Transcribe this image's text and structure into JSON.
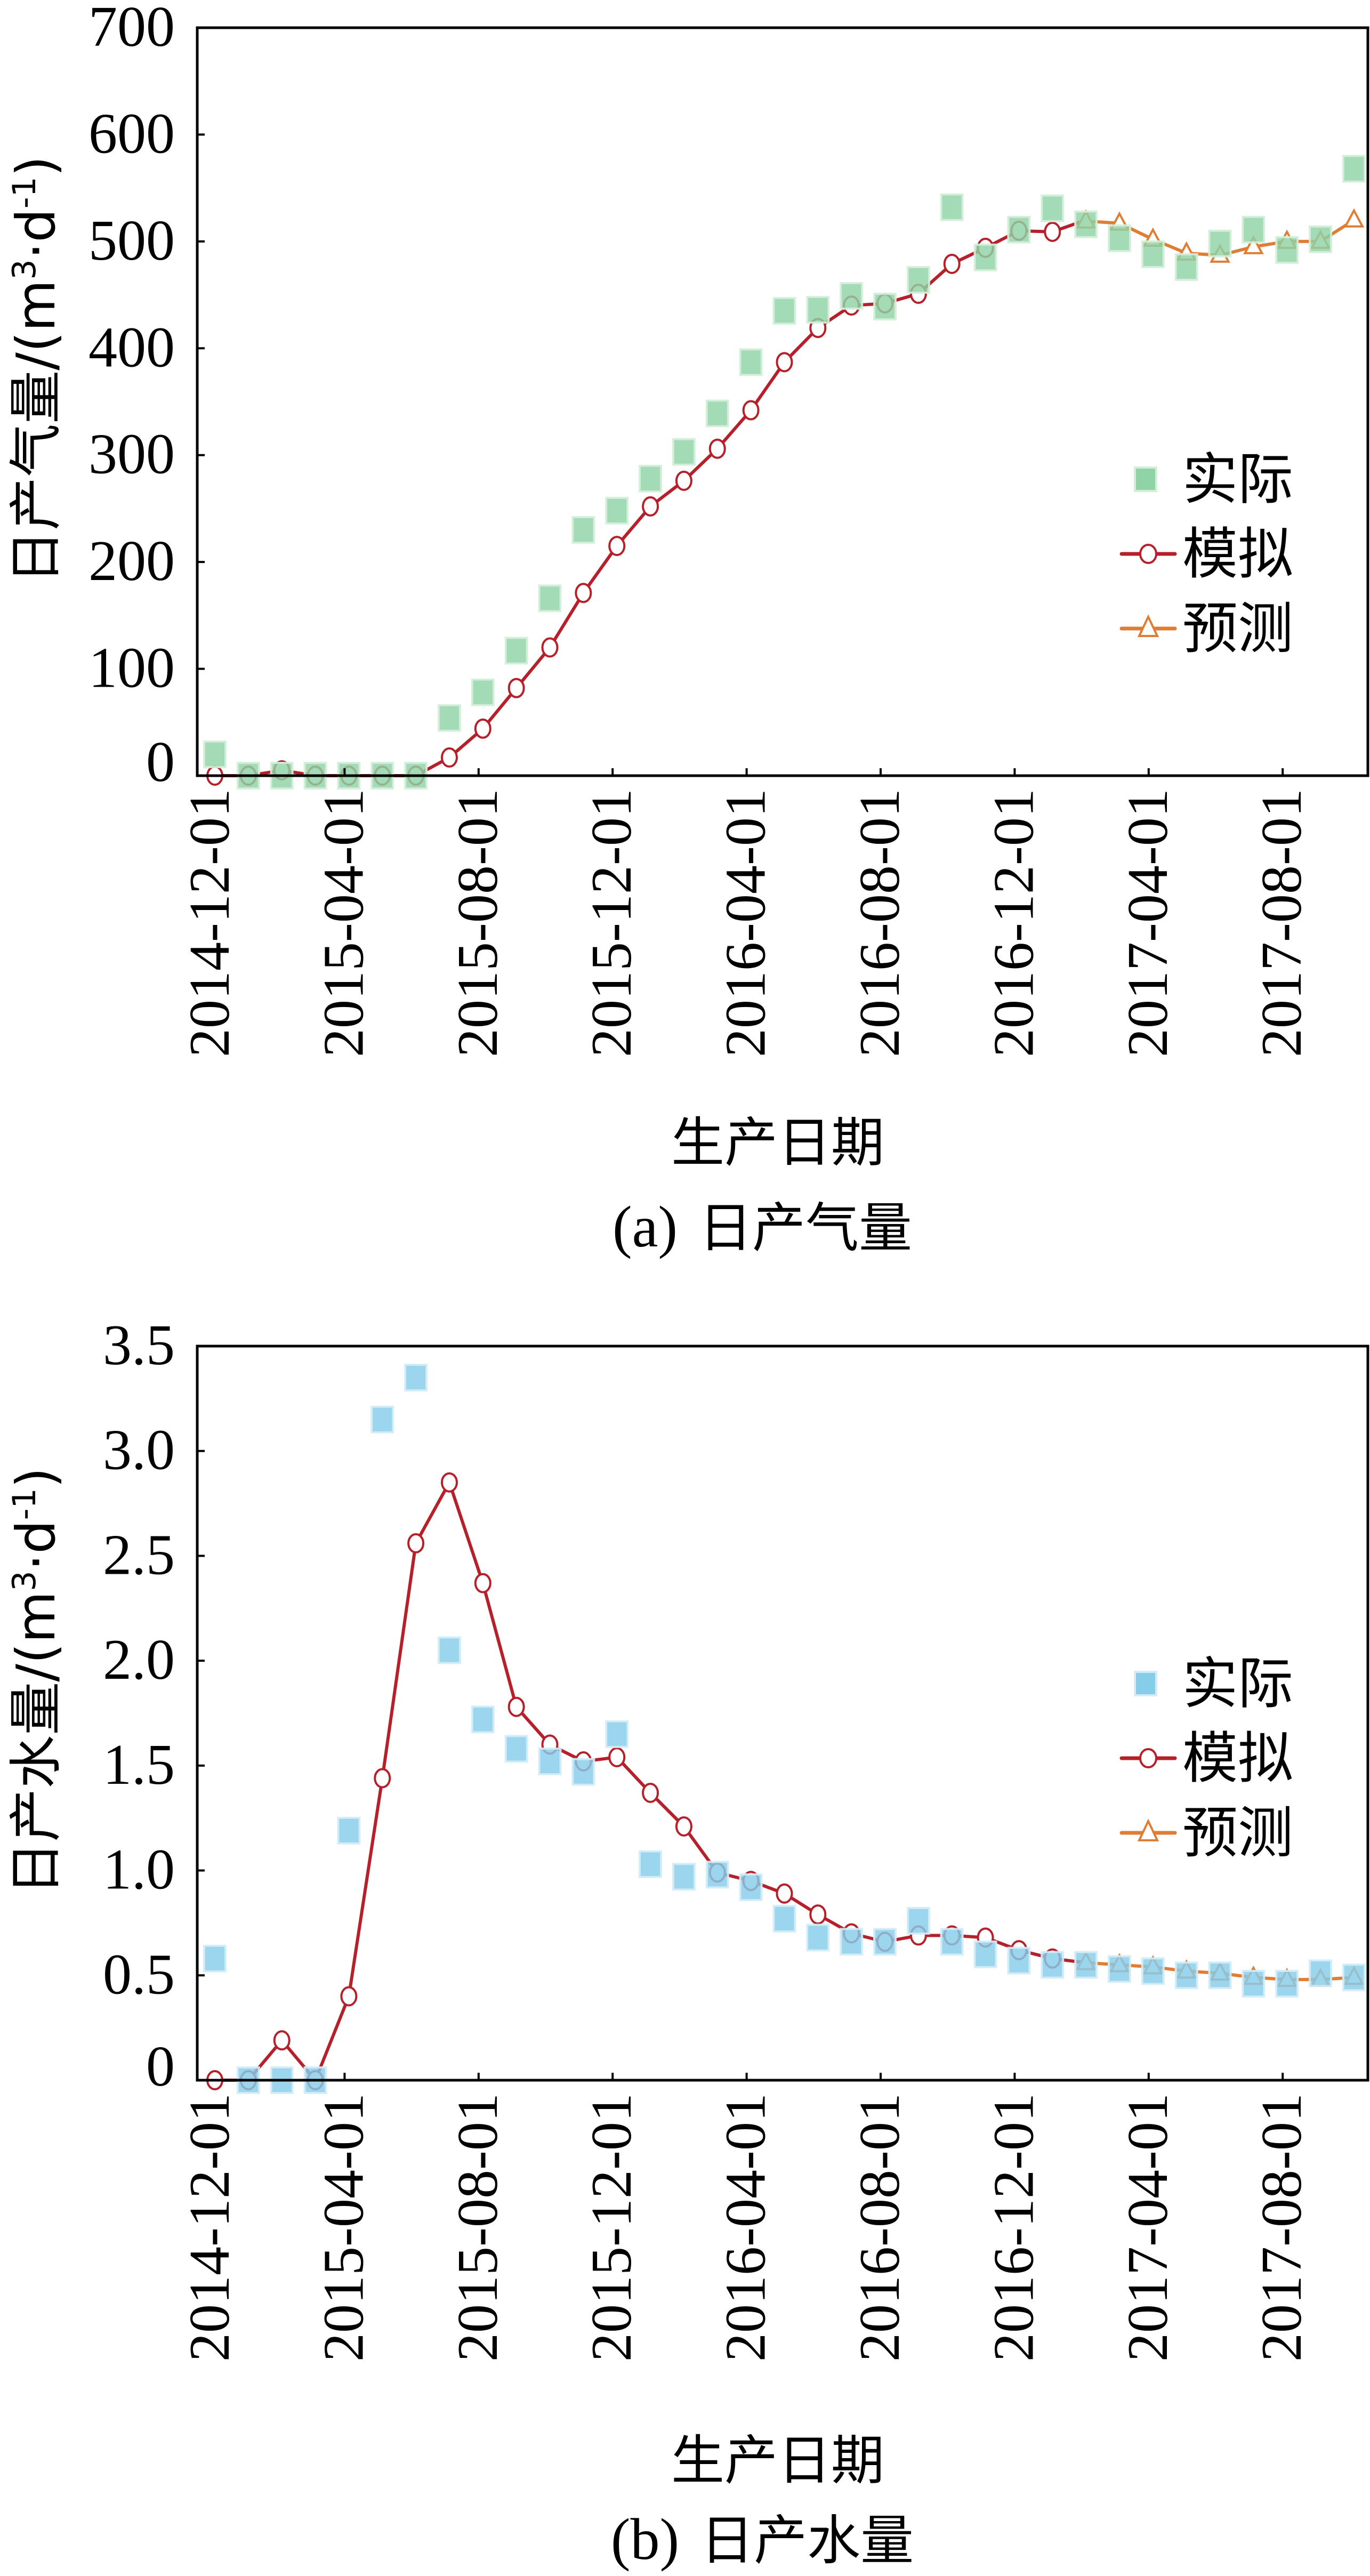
{
  "chart_data": [
    {
      "type": "scatter+line",
      "panel": "a",
      "caption_letter": "(a)",
      "caption_text": "日产气量",
      "title": "(a)  日产气量",
      "xlabel": "生产日期",
      "ylabel": "日产气量/(m³·d⁻¹)",
      "ylabel_main": "日产气量/(m",
      "ylabel_sup1": "3",
      "ylabel_mid": "·d",
      "ylabel_sup2": "-1",
      "ylabel_end": ")",
      "ylim": [
        0,
        700
      ],
      "yticks": [
        0,
        100,
        200,
        300,
        400,
        500,
        600,
        700
      ],
      "ytick_labels": [
        "0",
        "100",
        "200",
        "300",
        "400",
        "500",
        "600",
        "700"
      ],
      "x": [
        "2014-12",
        "2015-01",
        "2015-02",
        "2015-03",
        "2015-04",
        "2015-05",
        "2015-06",
        "2015-07",
        "2015-08",
        "2015-09",
        "2015-10",
        "2015-11",
        "2015-12",
        "2016-01",
        "2016-02",
        "2016-03",
        "2016-04",
        "2016-05",
        "2016-06",
        "2016-07",
        "2016-08",
        "2016-09",
        "2016-10",
        "2016-11",
        "2016-12",
        "2017-01",
        "2017-02",
        "2017-03",
        "2017-04",
        "2017-05",
        "2017-06",
        "2017-07",
        "2017-08",
        "2017-09",
        "2017-10"
      ],
      "xticks": [
        0,
        4,
        8,
        12,
        16,
        20,
        24,
        28,
        32
      ],
      "xtick_labels": [
        "2014-12-01",
        "2015-04-01",
        "2015-08-01",
        "2015-12-01",
        "2016-04-01",
        "2016-08-01",
        "2016-12-01",
        "2017-04-01",
        "2017-08-01"
      ],
      "legend_position": "right-middle",
      "series": [
        {
          "name": "实际",
          "marker": "square",
          "color": "#8fd3a6",
          "edge": "#d4eed9",
          "start": 0,
          "values": [
            20,
            0,
            0,
            0,
            0,
            0,
            0,
            54,
            78,
            117,
            166,
            230,
            248,
            278,
            303,
            339,
            387,
            435,
            436,
            449,
            439,
            464,
            532,
            485,
            511,
            531,
            516,
            503,
            488,
            476,
            498,
            511,
            492,
            502,
            568
          ]
        },
        {
          "name": "模拟",
          "marker": "circle",
          "color": "#b5202a",
          "start": 0,
          "values": [
            0,
            0,
            5,
            0,
            0,
            0,
            0,
            17,
            44,
            82,
            120,
            171,
            215,
            252,
            276,
            306,
            342,
            387,
            419,
            440,
            442,
            451,
            479,
            494,
            510,
            509,
            520
          ]
        },
        {
          "name": "预测",
          "marker": "triangle",
          "color": "#e07d35",
          "start": 26,
          "values": [
            519,
            517,
            502,
            489,
            487,
            495,
            500,
            500,
            520
          ]
        }
      ]
    },
    {
      "type": "scatter+line",
      "panel": "b",
      "caption_letter": "(b)",
      "caption_text": "日产水量",
      "title": "(b)  日产水量",
      "xlabel": "生产日期",
      "ylabel": "日产水量/(m³·d⁻¹)",
      "ylabel_main": "日产水量/(m",
      "ylabel_sup1": "3",
      "ylabel_mid": "·d",
      "ylabel_sup2": "-1",
      "ylabel_end": ")",
      "ylim": [
        0,
        3.5
      ],
      "yticks": [
        0,
        0.5,
        1.0,
        1.5,
        2.0,
        2.5,
        3.0,
        3.5
      ],
      "ytick_labels": [
        "0",
        "0.5",
        "1.0",
        "1.5",
        "2.0",
        "2.5",
        "3.0",
        "3.5"
      ],
      "x": [
        "2014-12",
        "2015-01",
        "2015-02",
        "2015-03",
        "2015-04",
        "2015-05",
        "2015-06",
        "2015-07",
        "2015-08",
        "2015-09",
        "2015-10",
        "2015-11",
        "2015-12",
        "2016-01",
        "2016-02",
        "2016-03",
        "2016-04",
        "2016-05",
        "2016-06",
        "2016-07",
        "2016-08",
        "2016-09",
        "2016-10",
        "2016-11",
        "2016-12",
        "2017-01",
        "2017-02",
        "2017-03",
        "2017-04",
        "2017-05",
        "2017-06",
        "2017-07",
        "2017-08",
        "2017-09",
        "2017-10"
      ],
      "xticks": [
        0,
        4,
        8,
        12,
        16,
        20,
        24,
        28,
        32
      ],
      "xtick_labels": [
        "2014-12-01",
        "2015-04-01",
        "2015-08-01",
        "2015-12-01",
        "2016-04-01",
        "2016-08-01",
        "2016-12-01",
        "2017-04-01",
        "2017-08-01"
      ],
      "legend_position": "right-middle",
      "series": [
        {
          "name": "实际",
          "marker": "square",
          "color": "#86cdea",
          "edge": "#d3ecf7",
          "start": 0,
          "values": [
            0.58,
            0,
            0,
            0,
            1.19,
            3.15,
            3.35,
            2.05,
            1.72,
            1.58,
            1.52,
            1.47,
            1.65,
            1.03,
            0.97,
            0.98,
            0.92,
            0.77,
            0.68,
            0.66,
            0.66,
            0.76,
            0.66,
            0.6,
            0.57,
            0.55,
            0.55,
            0.53,
            0.52,
            0.5,
            0.5,
            0.46,
            0.46,
            0.51,
            0.49
          ]
        },
        {
          "name": "模拟",
          "marker": "circle",
          "color": "#b5202a",
          "start": 0,
          "values": [
            0,
            0,
            0.19,
            0,
            0.4,
            1.44,
            2.56,
            2.85,
            2.37,
            1.78,
            1.6,
            1.52,
            1.54,
            1.37,
            1.21,
            0.99,
            0.95,
            0.89,
            0.79,
            0.7,
            0.66,
            0.69,
            0.69,
            0.68,
            0.62,
            0.58,
            0.56
          ]
        },
        {
          "name": "预测",
          "marker": "triangle",
          "color": "#e07d35",
          "start": 26,
          "values": [
            0.56,
            0.55,
            0.54,
            0.52,
            0.51,
            0.49,
            0.48,
            0.48,
            0.49
          ]
        }
      ]
    }
  ]
}
